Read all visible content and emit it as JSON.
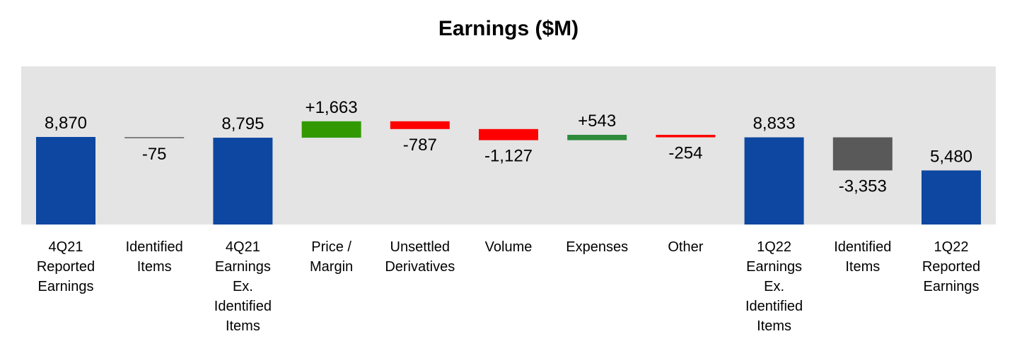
{
  "chart_data": {
    "type": "waterfall",
    "title": "Earnings ($M)",
    "plot_background": "#e4e4e4",
    "ylim": [
      0,
      10000
    ],
    "bars": [
      {
        "category": "4Q21\nReported\nEarnings",
        "kind": "total",
        "value": 8870,
        "label": "8,870",
        "color": "#0d47a1"
      },
      {
        "category": "Identified\nItems",
        "kind": "delta",
        "value": -75,
        "label": "-75",
        "color": "#808080"
      },
      {
        "category": "4Q21\nEarnings\nEx.\nIdentified\nItems",
        "kind": "total",
        "value": 8795,
        "label": "8,795",
        "color": "#0d47a1"
      },
      {
        "category": "Price /\nMargin",
        "kind": "delta",
        "value": 1663,
        "label": "+1,663",
        "color": "#339900"
      },
      {
        "category": "Unsettled\nDerivatives",
        "kind": "delta",
        "value": -787,
        "label": "-787",
        "color": "#ff0000"
      },
      {
        "category": "Volume",
        "kind": "delta",
        "value": -1127,
        "label": "-1,127",
        "color": "#ff0000"
      },
      {
        "category": "Expenses",
        "kind": "delta",
        "value": 543,
        "label": "+543",
        "color": "#2e8b3a"
      },
      {
        "category": "Other",
        "kind": "delta",
        "value": -254,
        "label": "-254",
        "color": "#ff0000"
      },
      {
        "category": "1Q22\nEarnings\nEx.\nIdentified\nItems",
        "kind": "total",
        "value": 8833,
        "label": "8,833",
        "color": "#0d47a1"
      },
      {
        "category": "Identified\nItems",
        "kind": "delta",
        "value": -3353,
        "label": "-3,353",
        "color": "#595959"
      },
      {
        "category": "1Q22\nReported\nEarnings",
        "kind": "total",
        "value": 5480,
        "label": "5,480",
        "color": "#0d47a1"
      }
    ]
  }
}
